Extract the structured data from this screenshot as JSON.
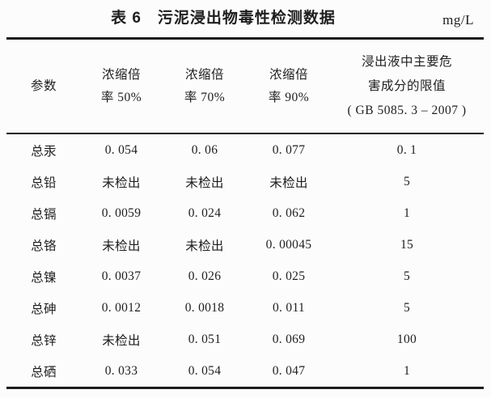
{
  "title": {
    "text": "表 6　污泥浸出物毒性检测数据",
    "unit": "mg/L"
  },
  "table": {
    "header": {
      "param": "参数",
      "c50": [
        "浓缩倍",
        "率 50%"
      ],
      "c70": [
        "浓缩倍",
        "率 70%"
      ],
      "c90": [
        "浓缩倍",
        "率 90%"
      ],
      "limit": [
        "浸出液中主要危",
        "害成分的限值",
        "( GB 5085. 3 – 2007 )"
      ]
    },
    "rows": [
      {
        "param": "总汞",
        "c50": "0. 054",
        "c70": "0. 06",
        "c90": "0. 077",
        "limit": "0. 1"
      },
      {
        "param": "总铅",
        "c50": "未检出",
        "c70": "未检出",
        "c90": "未检出",
        "limit": "5"
      },
      {
        "param": "总镉",
        "c50": "0. 0059",
        "c70": "0. 024",
        "c90": "0. 062",
        "limit": "1"
      },
      {
        "param": "总铬",
        "c50": "未检出",
        "c70": "未检出",
        "c90": "0. 00045",
        "limit": "15"
      },
      {
        "param": "总镍",
        "c50": "0. 0037",
        "c70": "0. 026",
        "c90": "0. 025",
        "limit": "5"
      },
      {
        "param": "总砷",
        "c50": "0. 0012",
        "c70": "0. 0018",
        "c90": "0. 011",
        "limit": "5"
      },
      {
        "param": "总锌",
        "c50": "未检出",
        "c70": "0. 051",
        "c90": "0. 069",
        "limit": "100"
      },
      {
        "param": "总硒",
        "c50": "0. 033",
        "c70": "0. 054",
        "c90": "0. 047",
        "limit": "1"
      }
    ],
    "colors": {
      "rule": "#1c1c1c",
      "text": "#1e1e1e",
      "background": "#fcfcfc"
    }
  }
}
